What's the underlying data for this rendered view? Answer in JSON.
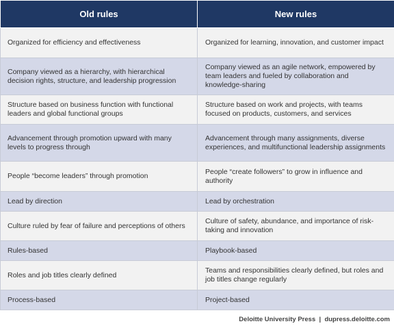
{
  "header": {
    "old": "Old rules",
    "new": "New rules"
  },
  "rows": [
    {
      "old": "Organized for efficiency and effectiveness",
      "new": "Organized for learning, innovation, and customer impact"
    },
    {
      "old": "Company viewed as a hierarchy, with hierarchical decision rights, structure, and leadership progression",
      "new": "Company viewed as an agile network, empowered by team leaders and fueled by collaboration and knowledge-sharing"
    },
    {
      "old": "Structure based on business function with functional leaders and global functional groups",
      "new": "Structure based on work and projects, with teams focused on products, customers, and services"
    },
    {
      "old": "Advancement through promotion upward with many levels to progress through",
      "new": "Advancement through many assignments, diverse experiences, and multifunctional leadership assignments"
    },
    {
      "old": "People “become leaders” through promotion",
      "new": "People “create followers” to grow in influence and authority"
    },
    {
      "old": "Lead by direction",
      "new": "Lead by orchestration"
    },
    {
      "old": "Culture ruled by fear of failure and perceptions of others",
      "new": "Culture of safety, abundance, and importance of risk-taking and innovation"
    },
    {
      "old": "Rules-based",
      "new": "Playbook-based"
    },
    {
      "old": "Roles and job titles clearly defined",
      "new": "Teams and responsibilities clearly defined, but roles and job titles change regularly"
    },
    {
      "old": "Process-based",
      "new": "Project-based"
    }
  ],
  "footer": {
    "source": "Deloitte University Press  |  dupress.deloitte.com"
  }
}
